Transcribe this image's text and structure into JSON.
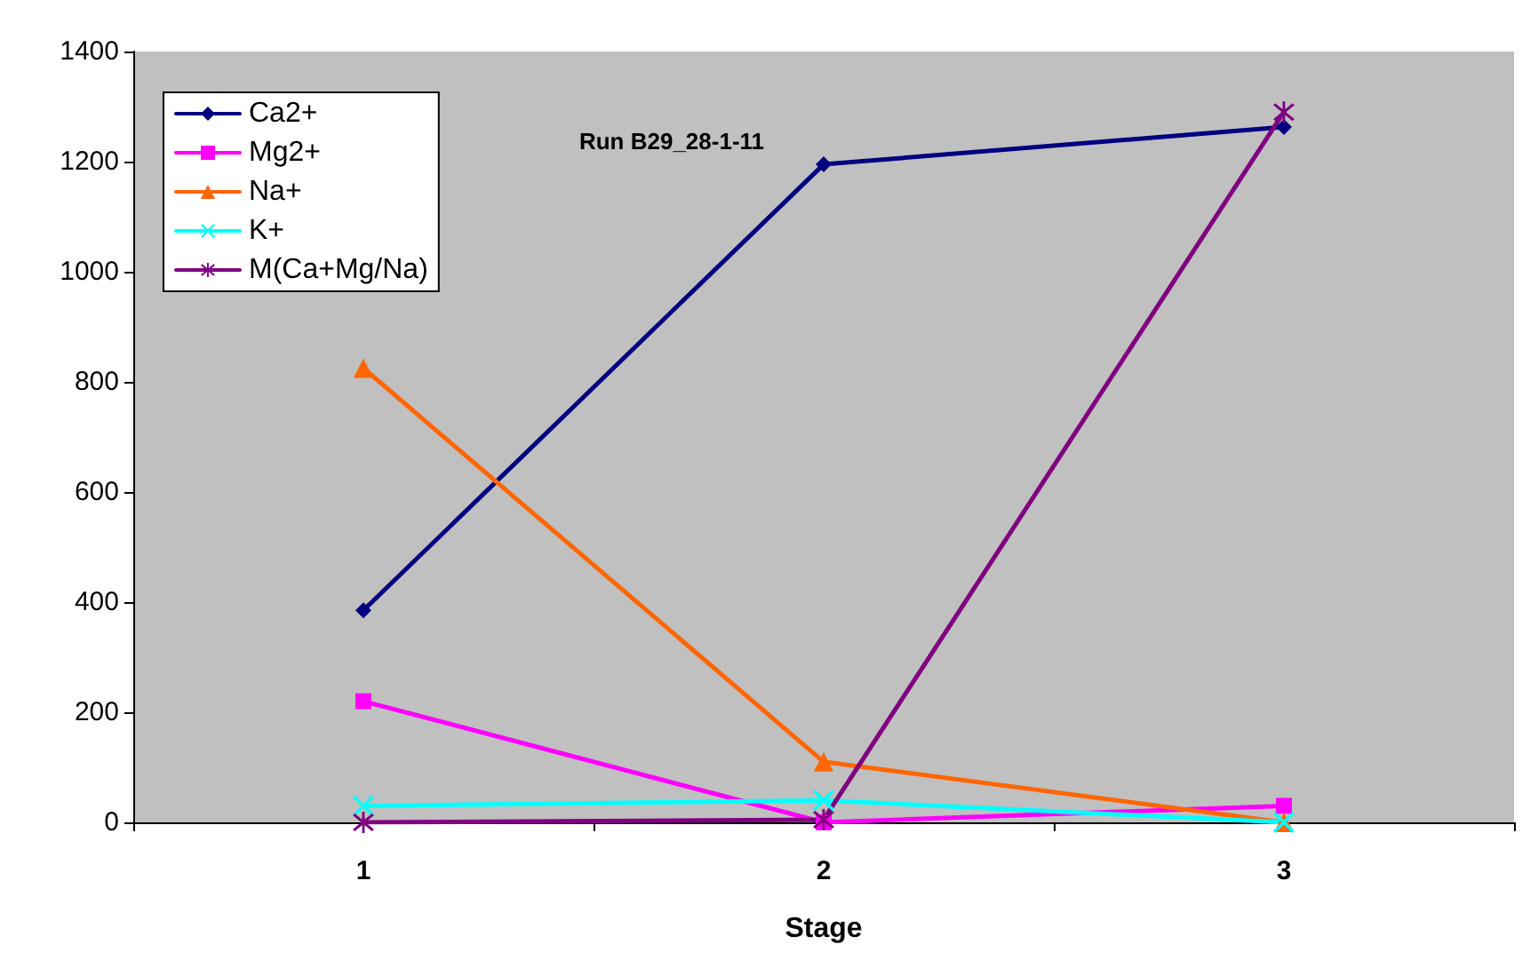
{
  "chart_data": {
    "type": "line",
    "title": "Run B29_28-1-11",
    "xlabel": "Stage",
    "categories": [
      "1",
      "2",
      "3"
    ],
    "series": [
      {
        "name": "Ca2+",
        "color": "#000080",
        "marker": "diamond",
        "values": [
          385,
          1195,
          1263
        ]
      },
      {
        "name": "Mg2+",
        "color": "#ff00ff",
        "marker": "square",
        "values": [
          220,
          0,
          30
        ]
      },
      {
        "name": "Na+",
        "color": "#ff6600",
        "marker": "triangle",
        "values": [
          825,
          110,
          0
        ]
      },
      {
        "name": "K+",
        "color": "#00ffff",
        "marker": "cross",
        "values": [
          30,
          40,
          0
        ]
      },
      {
        "name": "M(Ca+Mg/Na)",
        "color": "#800080",
        "marker": "star",
        "values": [
          0,
          5,
          1290
        ]
      }
    ],
    "ylim": [
      0,
      1400
    ],
    "yticks": [
      0,
      200,
      400,
      600,
      800,
      1000,
      1200,
      1400
    ],
    "grid": false,
    "legend": "top left",
    "line_style": "solid"
  }
}
